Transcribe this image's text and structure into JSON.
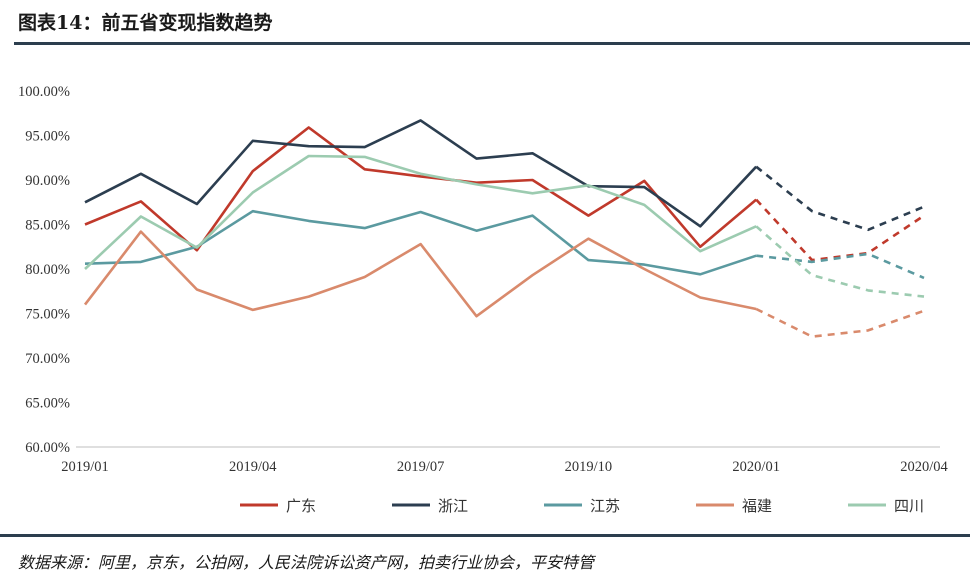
{
  "header": {
    "title": "图表14：前五省变现指数趋势"
  },
  "footer": {
    "source": "数据来源：阿里，京东，公拍网，人民法院诉讼资产网，拍卖行业协会，平安特管"
  },
  "chart_data": {
    "type": "line",
    "title": "",
    "xlabel": "",
    "ylabel": "",
    "ylim": [
      60,
      100
    ],
    "y_ticks": [
      60,
      65,
      70,
      75,
      80,
      85,
      90,
      95,
      100
    ],
    "y_tick_labels": [
      "60.00%",
      "65.00%",
      "70.00%",
      "75.00%",
      "80.00%",
      "85.00%",
      "90.00%",
      "95.00%",
      "100.00%"
    ],
    "x": [
      "2019/01",
      "2019/02",
      "2019/03",
      "2019/04",
      "2019/05",
      "2019/06",
      "2019/07",
      "2019/08",
      "2019/09",
      "2019/10",
      "2019/11",
      "2019/12",
      "2020/01",
      "2020/02",
      "2020/03",
      "2020/04"
    ],
    "x_tick_labels": [
      {
        "index": 0,
        "label": "2019/01"
      },
      {
        "index": 3,
        "label": "2019/04"
      },
      {
        "index": 6,
        "label": "2019/07"
      },
      {
        "index": 9,
        "label": "2019/10"
      },
      {
        "index": 12,
        "label": "2020/01"
      },
      {
        "index": 15,
        "label": "2020/04"
      }
    ],
    "forecast_start_index": 12,
    "legend_position": "bottom",
    "grid": false,
    "series": [
      {
        "name": "广东",
        "color": "#c0392b",
        "values": [
          85.0,
          87.6,
          82.1,
          91.0,
          95.9,
          91.2,
          90.4,
          89.7,
          90.0,
          86.0,
          89.9,
          82.5,
          87.8,
          81.0,
          81.8,
          86.0
        ]
      },
      {
        "name": "浙江",
        "color": "#2c3e50",
        "values": [
          87.5,
          90.7,
          87.3,
          94.4,
          93.8,
          93.7,
          96.7,
          92.4,
          93.0,
          89.3,
          89.2,
          84.8,
          91.5,
          86.5,
          84.4,
          87.0
        ]
      },
      {
        "name": "江苏",
        "color": "#5b9aa0",
        "values": [
          80.6,
          80.8,
          82.5,
          86.5,
          85.4,
          84.6,
          86.4,
          84.3,
          86.0,
          81.0,
          80.5,
          79.4,
          81.5,
          80.8,
          81.7,
          79.0
        ]
      },
      {
        "name": "福建",
        "color": "#d98a6c",
        "values": [
          76.0,
          84.2,
          77.7,
          75.4,
          76.9,
          79.1,
          82.8,
          74.7,
          79.3,
          83.4,
          80.0,
          76.8,
          75.5,
          72.4,
          73.1,
          75.3
        ]
      },
      {
        "name": "四川",
        "color": "#9ccbb0",
        "values": [
          80.0,
          85.9,
          82.4,
          88.6,
          92.7,
          92.6,
          90.7,
          89.5,
          88.5,
          89.4,
          87.2,
          82.0,
          84.8,
          79.3,
          77.6,
          76.9
        ]
      }
    ]
  }
}
